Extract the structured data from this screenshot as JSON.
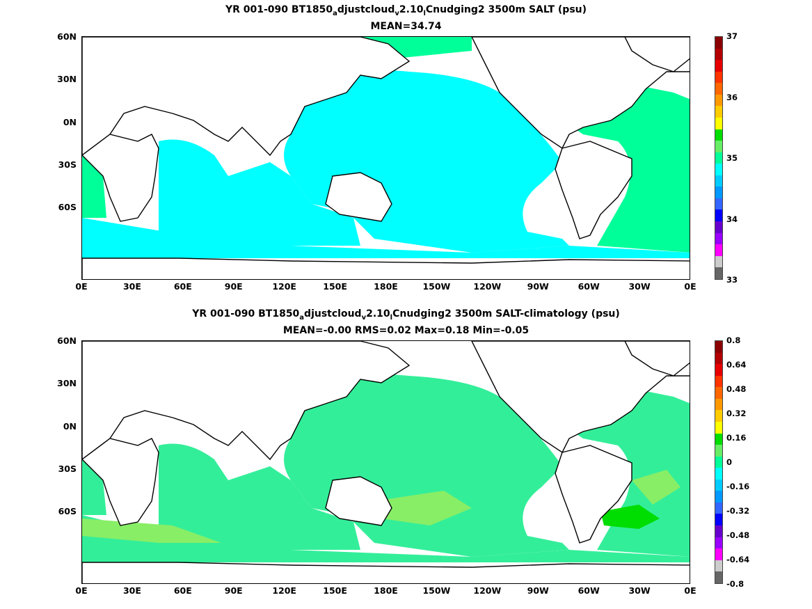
{
  "panels": [
    {
      "title_line1": {
        "a": "YR 001-090 BT1850",
        "s1": "a",
        "b": "djustcloud",
        "s2": "v",
        "c": "2.10",
        "s3": "l",
        "d": "Cnudging2 3500m SALT (psu)"
      },
      "title_line2": "MEAN=34.74",
      "colorbar_labels": [
        "37",
        "36",
        "35",
        "34",
        "33"
      ],
      "colorbar_colors": [
        "#8b0000",
        "#b30000",
        "#e60000",
        "#ff3300",
        "#ff6600",
        "#ff9900",
        "#ffcc00",
        "#ffff00",
        "#00dd00",
        "#66ee66",
        "#00ff99",
        "#00ffff",
        "#00ccff",
        "#0099ff",
        "#3366ff",
        "#0000ff",
        "#6600cc",
        "#9900ff",
        "#ff00ff",
        "#cccccc",
        "#666666"
      ],
      "fill_colors": {
        "main": "#00ffff",
        "alt": "#44ee99",
        "alt2": "#66dd66"
      }
    },
    {
      "title_line1": {
        "a": "YR 001-090 BT1850",
        "s1": "a",
        "b": "djustcloud",
        "s2": "v",
        "c": "2.10",
        "s3": "l",
        "d": "Cnudging2 3500m SALT-climatology (psu)"
      },
      "title_line2": "MEAN=-0.00   RMS=0.02   Max=0.18   Min=-0.05",
      "colorbar_labels": [
        "0.8",
        "0.64",
        "0.48",
        "0.32",
        "0.16",
        "0",
        "-0.16",
        "-0.32",
        "-0.48",
        "-0.64",
        "-0.8"
      ],
      "colorbar_colors": [
        "#8b0000",
        "#b30000",
        "#e60000",
        "#ff3300",
        "#ff6600",
        "#ff9900",
        "#ffcc00",
        "#ffff00",
        "#00dd00",
        "#66ee66",
        "#00ff99",
        "#00ffff",
        "#00ccff",
        "#0099ff",
        "#3366ff",
        "#0000ff",
        "#6600cc",
        "#9900ff",
        "#ff00ff",
        "#cccccc",
        "#666666"
      ],
      "fill_colors": {
        "main": "#33ee99",
        "alt": "#88ee66",
        "alt2": "#00dd00"
      }
    }
  ],
  "lat_labels": [
    "60N",
    "30N",
    "0N",
    "30S",
    "60S"
  ],
  "lon_labels": [
    "0E",
    "30E",
    "60E",
    "90E",
    "120E",
    "150E",
    "180E",
    "150W",
    "120W",
    "90W",
    "60W",
    "30W",
    "0E"
  ]
}
